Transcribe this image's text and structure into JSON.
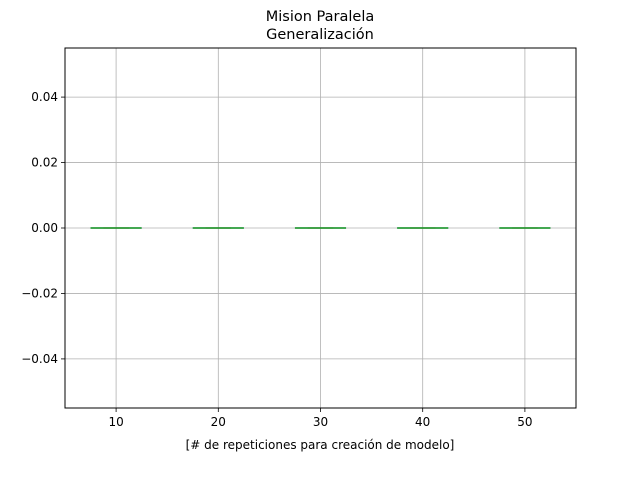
{
  "chart_data": {
    "type": "box",
    "title": "Mision Paralela",
    "subtitle": "Generalización",
    "xlabel": "[# de repeticiones para creación de modelo]",
    "ylabel": "",
    "categories": [
      "10",
      "20",
      "30",
      "40",
      "50"
    ],
    "x": [
      10,
      20,
      30,
      40,
      50
    ],
    "values": [
      0,
      0,
      0,
      0,
      0
    ],
    "xlim": [
      5,
      55
    ],
    "ylim": [
      -0.055,
      0.055
    ],
    "xticks": [
      10,
      20,
      30,
      40,
      50
    ],
    "xtick_labels": [
      "10",
      "20",
      "30",
      "40",
      "50"
    ],
    "yticks": [
      0.04,
      0.02,
      0.0,
      -0.02,
      -0.04
    ],
    "ytick_labels": [
      "0.04",
      "0.02",
      "0.00",
      "−0.02",
      "−0.04"
    ],
    "grid": true,
    "colors": {
      "median": "#2ca02c",
      "box": "#1f77b4",
      "grid": "#b0b0b0"
    }
  }
}
